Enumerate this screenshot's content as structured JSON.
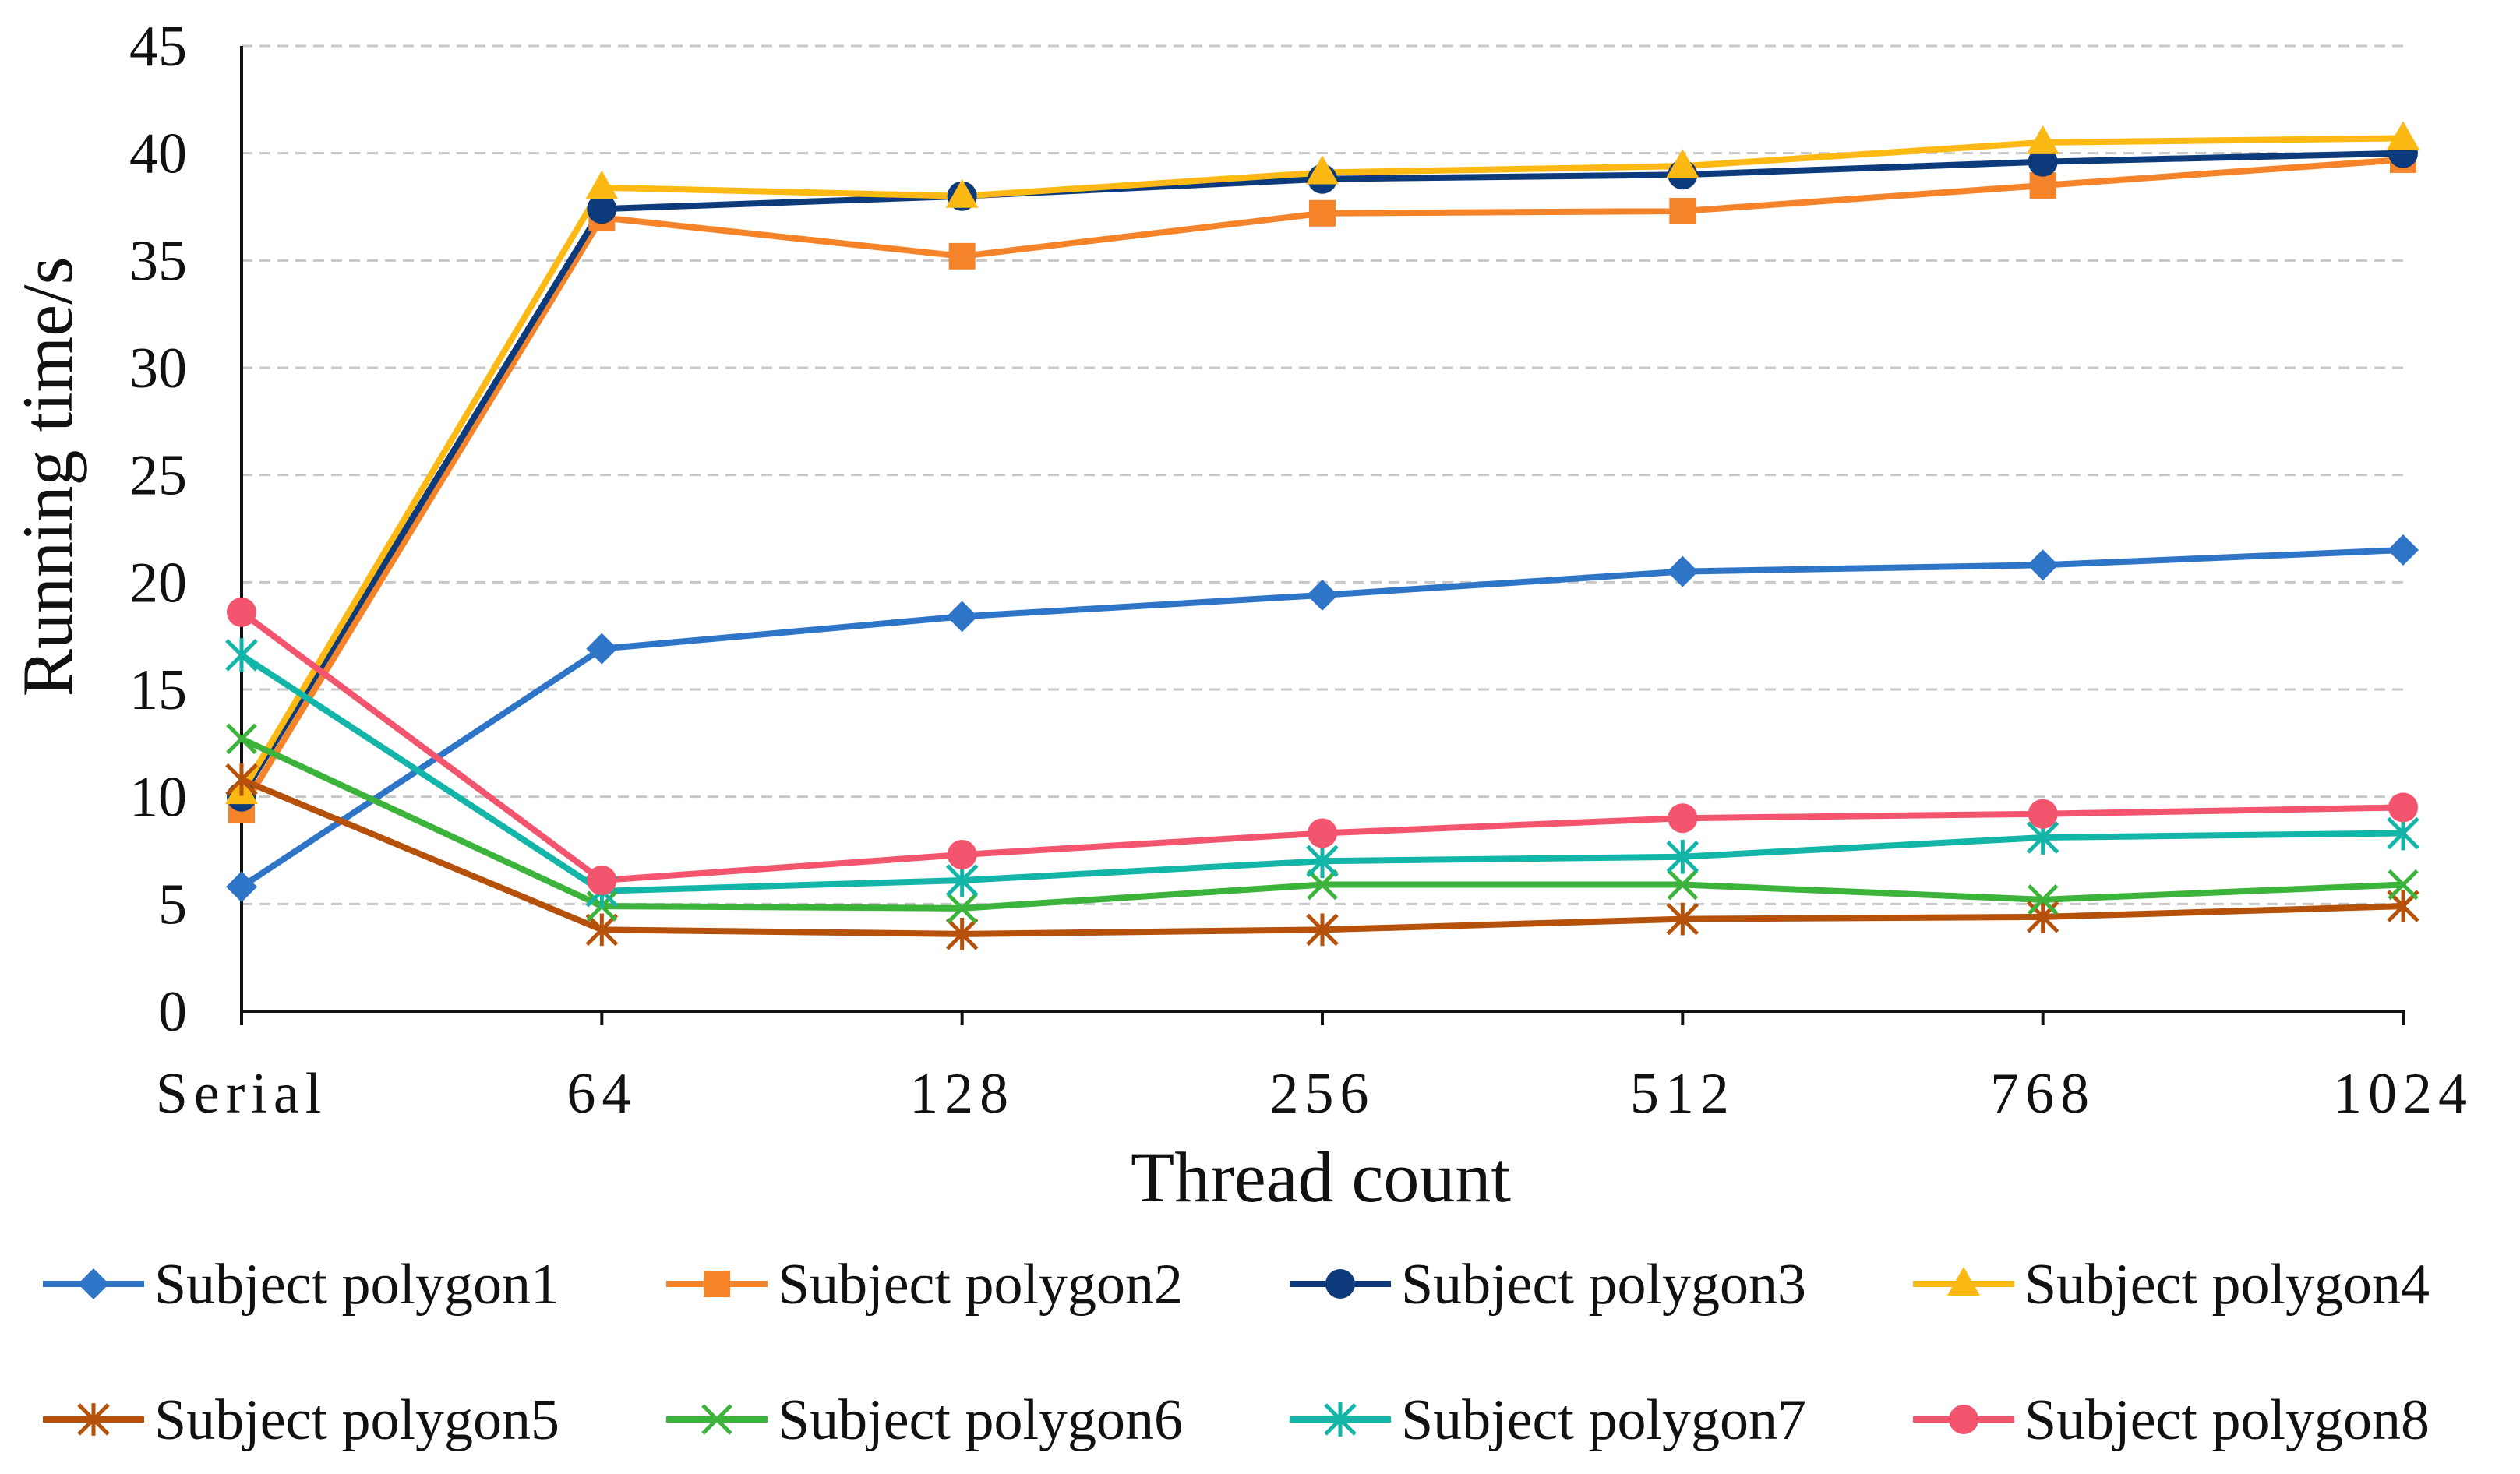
{
  "chart_data": {
    "type": "line",
    "title": "",
    "xlabel": "Thread count",
    "ylabel": "Running time/s",
    "categories": [
      "Serial",
      "64",
      "128",
      "256",
      "512",
      "768",
      "1024"
    ],
    "ylim": [
      0,
      45
    ],
    "yticks": [
      0,
      5,
      10,
      15,
      20,
      25,
      30,
      35,
      40,
      45
    ],
    "grid": "horizontal dashed",
    "legend_position": "bottom",
    "series": [
      {
        "name": "Subject polygon1",
        "color": "#2E75C8",
        "marker": "diamond",
        "values": [
          5.8,
          16.9,
          18.4,
          19.4,
          20.5,
          20.8,
          21.5
        ]
      },
      {
        "name": "Subject polygon2",
        "color": "#F5832A",
        "marker": "square",
        "values": [
          9.4,
          37.0,
          35.2,
          37.2,
          37.3,
          38.5,
          39.7
        ]
      },
      {
        "name": "Subject polygon3",
        "color": "#0D3A7A",
        "marker": "circle",
        "values": [
          10.0,
          37.4,
          38.0,
          38.8,
          39.0,
          39.6,
          40.0
        ]
      },
      {
        "name": "Subject polygon4",
        "color": "#FDB913",
        "marker": "triangle",
        "values": [
          10.2,
          38.4,
          38.0,
          39.1,
          39.4,
          40.5,
          40.7
        ]
      },
      {
        "name": "Subject polygon5",
        "color": "#B5510A",
        "marker": "star",
        "values": [
          10.8,
          3.8,
          3.6,
          3.8,
          4.3,
          4.4,
          4.9
        ]
      },
      {
        "name": "Subject polygon6",
        "color": "#3CB43C",
        "marker": "x",
        "values": [
          12.7,
          4.9,
          4.8,
          5.9,
          5.9,
          5.2,
          5.9
        ]
      },
      {
        "name": "Subject polygon7",
        "color": "#12B5A8",
        "marker": "asterisk",
        "values": [
          16.6,
          5.6,
          6.1,
          7.0,
          7.2,
          8.1,
          8.3
        ]
      },
      {
        "name": "Subject polygon8",
        "color": "#F4556E",
        "marker": "circle",
        "values": [
          18.6,
          6.1,
          7.3,
          8.3,
          9.0,
          9.2,
          9.5
        ]
      }
    ]
  }
}
